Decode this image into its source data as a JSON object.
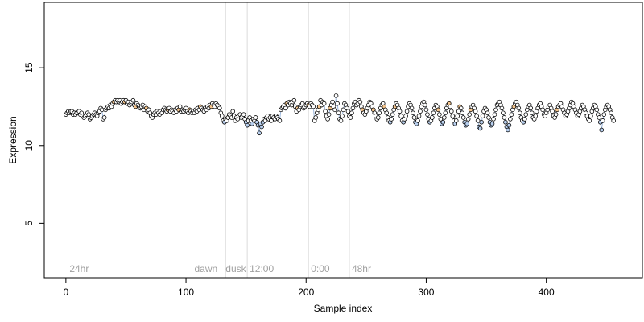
{
  "chart_data": {
    "type": "scatter",
    "title": "",
    "xlabel": "Sample index",
    "ylabel": "Expression",
    "xlim": [
      -18,
      480
    ],
    "ylim": [
      1.5,
      19.2
    ],
    "x_ticks": [
      0,
      100,
      200,
      300,
      400
    ],
    "y_ticks": [
      5,
      10,
      15
    ],
    "grid": false,
    "legend": "none",
    "colors": {
      "point_edge": "#000000",
      "point_fill_main": "#ffffff",
      "point_fill_highlight": "#f4c58e",
      "point_fill_low": "#b8cfee",
      "trend_line": "#9ab6dc",
      "vline": "#dcdcdc",
      "annotation": "#a0a0a0"
    },
    "vlines": [
      105,
      133,
      151,
      202,
      236
    ],
    "annotations": [
      {
        "x": 3,
        "text": "24hr"
      },
      {
        "x": 107,
        "text": "dawn"
      },
      {
        "x": 133,
        "text": "dusk"
      },
      {
        "x": 153,
        "text": "12:00"
      },
      {
        "x": 204,
        "text": "0:00"
      },
      {
        "x": 238,
        "text": "48hr"
      }
    ],
    "series": [
      {
        "values": [
          12.0,
          12.1,
          12.2,
          12.1,
          12.2,
          12.2,
          12.0,
          12.1,
          12.0,
          12.1,
          12.1,
          12.2,
          12.0,
          12.1,
          11.9,
          11.8,
          11.9,
          12.0,
          12.1,
          12.0,
          11.7,
          11.8,
          11.9,
          12.0,
          12.1,
          12.0,
          11.9,
          12.1,
          12.2,
          12.4,
          12.3,
          11.7,
          11.8,
          12.3,
          12.4,
          12.5,
          12.4,
          12.6,
          12.5,
          12.7,
          12.8,
          12.9,
          12.8,
          12.9,
          12.8,
          12.9,
          12.7,
          12.8,
          12.9,
          12.8,
          12.9,
          12.7,
          12.8,
          12.6,
          12.7,
          12.8,
          12.9,
          12.6,
          12.5,
          12.7,
          12.6,
          12.5,
          12.4,
          12.5,
          12.6,
          12.3,
          12.5,
          12.4,
          12.2,
          12.3,
          12.1,
          11.9,
          11.8,
          12.0,
          12.1,
          12.0,
          12.2,
          12.1,
          12.0,
          12.2,
          12.1,
          12.3,
          12.4,
          12.3,
          12.2,
          12.3,
          12.4,
          12.2,
          12.3,
          12.2,
          12.1,
          12.3,
          12.2,
          12.4,
          12.3,
          12.5,
          12.2,
          12.3,
          12.2,
          12.3,
          12.4,
          12.2,
          12.1,
          12.3,
          12.2,
          12.1,
          12.2,
          12.1,
          12.3,
          12.2,
          12.4,
          12.3,
          12.5,
          12.4,
          12.3,
          12.2,
          12.4,
          12.3,
          12.5,
          12.4,
          12.6,
          12.5,
          12.7,
          12.6,
          12.5,
          12.7,
          12.6,
          12.5,
          12.4,
          12.1,
          11.9,
          11.6,
          11.5,
          11.7,
          11.6,
          11.8,
          12.0,
          11.9,
          11.8,
          12.2,
          11.9,
          11.6,
          11.8,
          11.7,
          11.9,
          12.0,
          11.8,
          11.9,
          12.0,
          11.7,
          11.5,
          11.3,
          11.6,
          11.8,
          11.6,
          11.4,
          11.7,
          11.6,
          11.8,
          11.5,
          11.3,
          10.8,
          11.4,
          11.2,
          11.5,
          11.7,
          11.6,
          11.8,
          11.9,
          11.7,
          11.8,
          11.6,
          11.9,
          11.8,
          11.7,
          11.9,
          11.8,
          11.7,
          11.6,
          12.3,
          12.4,
          12.5,
          12.6,
          12.4,
          12.7,
          12.6,
          12.8,
          12.7,
          12.6,
          12.8,
          12.9,
          12.5,
          12.2,
          12.4,
          12.3,
          12.5,
          12.6,
          12.7,
          12.4,
          12.5,
          12.6,
          12.7,
          12.6,
          12.5,
          12.7,
          12.6,
          12.5,
          11.6,
          11.8,
          12.1,
          12.3,
          12.5,
          12.9,
          12.6,
          12.8,
          12.7,
          12.2,
          11.9,
          11.7,
          12.0,
          12.4,
          12.6,
          12.8,
          12.5,
          12.3,
          13.2,
          12.7,
          12.1,
          11.7,
          11.6,
          11.9,
          12.3,
          12.7,
          12.6,
          12.4,
          12.2,
          11.9,
          11.8,
          12.1,
          12.4,
          12.7,
          12.8,
          12.6,
          12.7,
          12.9,
          12.8,
          12.5,
          12.3,
          12.1,
          12.0,
          12.2,
          12.4,
          12.6,
          12.8,
          12.7,
          12.5,
          12.3,
          12.1,
          11.9,
          11.7,
          11.8,
          12.1,
          12.4,
          12.6,
          12.7,
          12.5,
          12.3,
          12.1,
          11.8,
          11.6,
          11.5,
          11.7,
          12.0,
          12.3,
          12.5,
          12.7,
          12.6,
          12.4,
          12.2,
          11.9,
          11.6,
          11.5,
          11.7,
          11.9,
          12.2,
          12.5,
          12.7,
          12.6,
          12.4,
          12.1,
          11.8,
          11.5,
          11.4,
          11.6,
          11.9,
          12.2,
          12.5,
          12.7,
          12.8,
          12.6,
          12.3,
          12.0,
          11.7,
          11.5,
          11.6,
          11.8,
          12.1,
          12.4,
          12.6,
          12.5,
          12.3,
          12.0,
          11.7,
          11.4,
          11.5,
          11.8,
          12.1,
          12.4,
          12.6,
          12.7,
          12.5,
          12.2,
          11.9,
          11.6,
          11.4,
          11.6,
          11.9,
          12.2,
          12.5,
          12.4,
          12.1,
          11.8,
          11.5,
          11.3,
          11.4,
          11.7,
          12.0,
          12.3,
          12.5,
          12.6,
          12.4,
          12.2,
          11.9,
          11.6,
          11.2,
          11.1,
          11.5,
          11.9,
          12.2,
          12.4,
          12.3,
          12.1,
          11.8,
          11.5,
          11.3,
          11.4,
          11.7,
          12.0,
          12.3,
          12.6,
          12.7,
          12.8,
          12.6,
          12.4,
          12.1,
          11.8,
          11.5,
          11.2,
          11.0,
          11.3,
          11.7,
          12.0,
          12.3,
          12.5,
          12.7,
          12.8,
          12.6,
          12.4,
          12.1,
          11.8,
          11.6,
          11.5,
          11.7,
          12.0,
          12.3,
          12.5,
          12.6,
          12.4,
          12.1,
          11.8,
          11.7,
          11.9,
          12.2,
          12.4,
          12.6,
          12.7,
          12.5,
          12.3,
          12.0,
          11.9,
          12.1,
          12.3,
          12.5,
          12.6,
          12.4,
          12.2,
          11.9,
          11.8,
          12.0,
          12.3,
          12.5,
          12.6,
          12.7,
          12.5,
          12.3,
          12.1,
          11.9,
          12.0,
          12.2,
          12.4,
          12.6,
          12.8,
          12.7,
          12.5,
          12.3,
          12.1,
          11.9,
          12.0,
          12.2,
          12.4,
          12.6,
          12.5,
          12.3,
          12.1,
          11.9,
          11.7,
          11.6,
          11.9,
          12.2,
          12.4,
          12.6,
          12.5,
          12.3,
          12.0,
          11.8,
          11.5,
          11.0,
          11.6,
          12.0,
          12.3,
          12.5,
          12.6,
          12.5,
          12.3,
          12.1,
          11.8,
          11.6
        ]
      }
    ]
  }
}
